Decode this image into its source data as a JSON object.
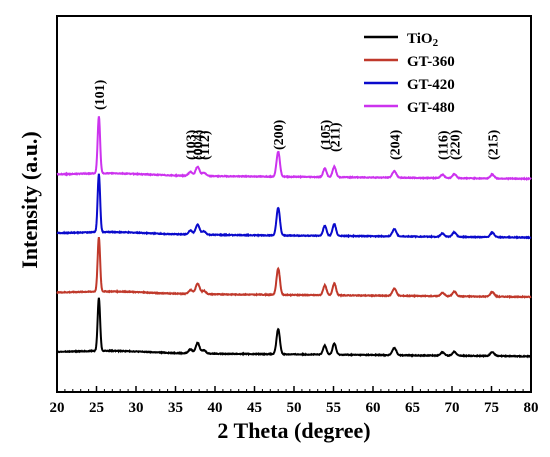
{
  "chart_data": {
    "type": "line",
    "xlabel": "2 Theta (degree)",
    "ylabel": "Intensity (a.u.)",
    "xlim": [
      20,
      80
    ],
    "xticks": [
      20,
      25,
      30,
      35,
      40,
      45,
      50,
      55,
      60,
      65,
      70,
      75,
      80
    ],
    "yticks_shown": false,
    "grid": false,
    "legend_position": "top-right",
    "legend_labels": {
      "tio2": {
        "base": "TiO",
        "sub": "2"
      },
      "gt360": "GT-360",
      "gt420": "GT-420",
      "gt480": "GT-480"
    },
    "peaks": [
      {
        "label": "(101)",
        "x": 25.3
      },
      {
        "label": "(103)",
        "x": 36.9
      },
      {
        "label": "(004)",
        "x": 37.8
      },
      {
        "label": "(112)",
        "x": 38.6
      },
      {
        "label": "(200)",
        "x": 48.0
      },
      {
        "label": "(105)",
        "x": 53.9
      },
      {
        "label": "(211)",
        "x": 55.1
      },
      {
        "label": "(204)",
        "x": 62.7
      },
      {
        "label": "(116)",
        "x": 68.8
      },
      {
        "label": "(220)",
        "x": 70.3
      },
      {
        "label": "(215)",
        "x": 75.1
      }
    ],
    "series": [
      {
        "key": "tio2",
        "color": "#000000",
        "baseline": 0.04,
        "slope": -0.06,
        "peak_heights": [
          0.8,
          0.06,
          0.16,
          0.05,
          0.38,
          0.14,
          0.17,
          0.11,
          0.05,
          0.06,
          0.06
        ]
      },
      {
        "key": "gt360",
        "color": "#c0392b",
        "baseline": 0.94,
        "slope": -0.06,
        "peak_heights": [
          0.82,
          0.06,
          0.16,
          0.05,
          0.4,
          0.15,
          0.18,
          0.11,
          0.05,
          0.07,
          0.07
        ]
      },
      {
        "key": "gt420",
        "color": "#0a0acc",
        "baseline": 1.84,
        "slope": -0.06,
        "peak_heights": [
          0.88,
          0.06,
          0.15,
          0.05,
          0.42,
          0.15,
          0.18,
          0.11,
          0.05,
          0.07,
          0.07
        ]
      },
      {
        "key": "gt480",
        "color": "#cc33ee",
        "baseline": 2.73,
        "slope": -0.06,
        "peak_heights": [
          0.86,
          0.06,
          0.14,
          0.05,
          0.38,
          0.13,
          0.16,
          0.1,
          0.05,
          0.06,
          0.06
        ]
      }
    ]
  }
}
